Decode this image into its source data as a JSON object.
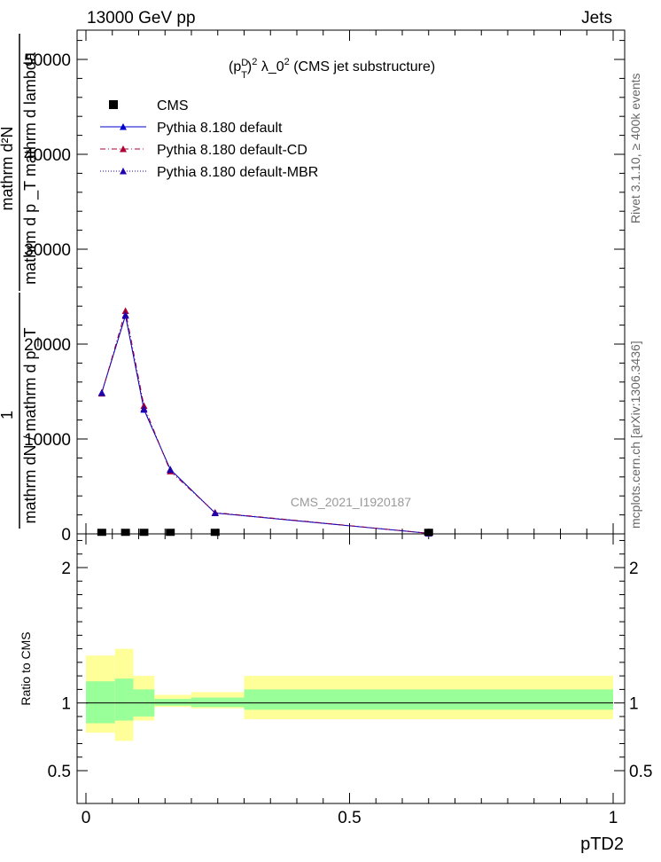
{
  "header": {
    "left": "13000 GeV pp",
    "right": "Jets"
  },
  "side_labels": {
    "rivet": "Rivet 3.1.10, ≥ 400k events",
    "mcplots": "mcplots.cern.ch [arXiv:1306.3436]"
  },
  "watermark": "CMS_2021_I1920187",
  "title_parts": {
    "open": "(p",
    "sup_d": "D",
    "sub_t": "T",
    "close": ")",
    "sup_2": "2",
    "rest": " λ_0",
    "sup_2b": "2",
    "tail": " (CMS jet substructure)"
  },
  "ylabel_main": {
    "numerator": "1",
    "denominator": "mathrm dN / mathrm d p _T",
    "numerator2": "mathrm d²N",
    "denominator2": "mathrm d p _T mathrm d lambda"
  },
  "ylabel_ratio": "Ratio to CMS",
  "xlabel": "pTD2",
  "legend": [
    {
      "label": "CMS",
      "color": "#000000",
      "marker": "square"
    },
    {
      "label": "Pythia 8.180 default",
      "color": "#0000cc",
      "marker": "triangle",
      "dash": "solid"
    },
    {
      "label": "Pythia 8.180 default-CD",
      "color": "#aa0033",
      "marker": "triangle",
      "dash": "dashdot"
    },
    {
      "label": "Pythia 8.180 default-MBR",
      "color": "#2200aa",
      "marker": "triangle",
      "dash": "dotted"
    }
  ],
  "chart_data": {
    "type": "line",
    "xlim": [
      0,
      1
    ],
    "ylim": [
      0,
      53000
    ],
    "x_ticks": [
      0,
      0.5,
      1
    ],
    "x_tick_labels": [
      "0",
      "0.5",
      "1"
    ],
    "y_ticks": [
      0,
      10000,
      20000,
      30000,
      40000,
      50000
    ],
    "y_tick_labels": [
      "0",
      "10000",
      "20000",
      "30000",
      "40000",
      "50000"
    ],
    "bins": [
      [
        0.0,
        0.055
      ],
      [
        0.055,
        0.09
      ],
      [
        0.09,
        0.13
      ],
      [
        0.13,
        0.2
      ],
      [
        0.2,
        0.3
      ],
      [
        0.3,
        1.0
      ]
    ],
    "x": [
      0.03,
      0.075,
      0.11,
      0.16,
      0.245,
      0.65
    ],
    "series": [
      {
        "name": "CMS",
        "values": [
          70,
          70,
          70,
          70,
          70,
          70
        ]
      },
      {
        "name": "Pythia 8.180 default",
        "values": [
          14900,
          23000,
          13100,
          6800,
          2200,
          60
        ]
      },
      {
        "name": "Pythia 8.180 default-CD",
        "values": [
          14800,
          23500,
          13500,
          6600,
          2250,
          60
        ]
      },
      {
        "name": "Pythia 8.180 default-MBR",
        "values": [
          14850,
          23100,
          13200,
          6750,
          2200,
          60
        ]
      }
    ],
    "ratio": {
      "ylim": [
        0.35,
        2.3
      ],
      "y_ticks": [
        0.5,
        1,
        2
      ],
      "y_tick_labels": [
        "0.5",
        "1",
        "2"
      ],
      "band_inner": [
        [
          0.85,
          1.16
        ],
        [
          0.87,
          1.18
        ],
        [
          0.9,
          1.1
        ],
        [
          0.98,
          1.03
        ],
        [
          0.97,
          1.04
        ],
        [
          0.95,
          1.1
        ]
      ],
      "band_outer": [
        [
          0.78,
          1.35
        ],
        [
          0.72,
          1.4
        ],
        [
          0.87,
          1.2
        ],
        [
          0.97,
          1.06
        ],
        [
          0.96,
          1.08
        ],
        [
          0.88,
          1.2
        ]
      ]
    }
  }
}
